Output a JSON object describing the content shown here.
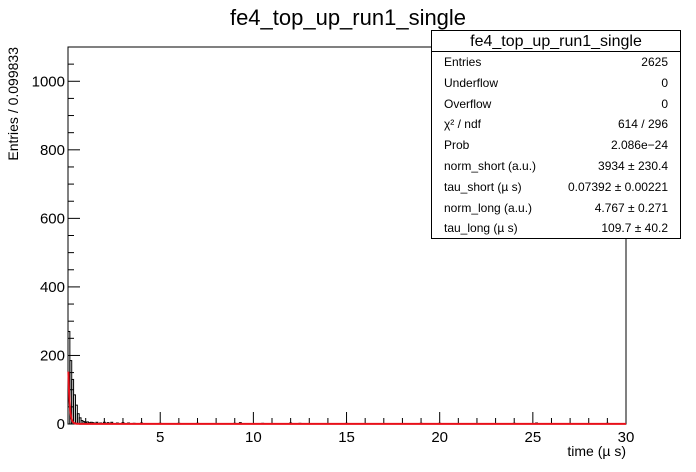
{
  "chart_data": {
    "type": "histogram",
    "title": "fe4_top_up_run1_single",
    "xlabel": "time (µ s)",
    "ylabel": "Entries / 0.099833",
    "xlim": [
      0.05,
      30
    ],
    "ylim": [
      0,
      1100
    ],
    "x_ticks": [
      5,
      10,
      15,
      20,
      25,
      30
    ],
    "y_ticks": [
      0,
      200,
      400,
      600,
      800,
      1000
    ],
    "bin_width": 0.099833,
    "histogram": {
      "color": "#000000",
      "bins": [
        {
          "x": 0.1,
          "y": 270
        },
        {
          "x": 0.2,
          "y": 185
        },
        {
          "x": 0.3,
          "y": 130
        },
        {
          "x": 0.4,
          "y": 85
        },
        {
          "x": 0.5,
          "y": 55
        },
        {
          "x": 0.6,
          "y": 30
        },
        {
          "x": 0.7,
          "y": 18
        },
        {
          "x": 0.8,
          "y": 10
        },
        {
          "x": 0.9,
          "y": 7
        },
        {
          "x": 1.0,
          "y": 5
        },
        {
          "x": 1.1,
          "y": 6
        },
        {
          "x": 1.2,
          "y": 4
        },
        {
          "x": 1.3,
          "y": 5
        },
        {
          "x": 1.4,
          "y": 4
        },
        {
          "x": 1.6,
          "y": 5
        },
        {
          "x": 1.8,
          "y": 3
        },
        {
          "x": 2.0,
          "y": 5
        },
        {
          "x": 2.2,
          "y": 4
        },
        {
          "x": 2.4,
          "y": 5
        },
        {
          "x": 2.7,
          "y": 3
        },
        {
          "x": 3.0,
          "y": 4
        },
        {
          "x": 3.3,
          "y": 3
        },
        {
          "x": 3.6,
          "y": 2
        },
        {
          "x": 4.0,
          "y": 3
        },
        {
          "x": 5.0,
          "y": 2
        },
        {
          "x": 6.0,
          "y": 2
        },
        {
          "x": 7.0,
          "y": 2
        },
        {
          "x": 8.0,
          "y": 1
        },
        {
          "x": 9.0,
          "y": 2
        },
        {
          "x": 9.3,
          "y": 4
        },
        {
          "x": 10.5,
          "y": 2
        },
        {
          "x": 12.0,
          "y": 3
        },
        {
          "x": 12.5,
          "y": 2
        },
        {
          "x": 13.5,
          "y": 1
        },
        {
          "x": 15.0,
          "y": 2
        },
        {
          "x": 17.0,
          "y": 1
        },
        {
          "x": 19.0,
          "y": 2
        },
        {
          "x": 20.0,
          "y": 2
        },
        {
          "x": 22.0,
          "y": 1
        },
        {
          "x": 24.0,
          "y": 2
        },
        {
          "x": 25.2,
          "y": 3
        },
        {
          "x": 27.0,
          "y": 1
        },
        {
          "x": 29.0,
          "y": 2
        }
      ]
    },
    "fit": {
      "color": "#e8101a",
      "model": "norm_short*exp(-t/tau_short) + norm_long*exp(-t/tau_long)",
      "norm_short": 3934,
      "tau_short": 0.07392,
      "norm_long": 4.767,
      "tau_long": 109.7
    },
    "legend_position": "top-right"
  },
  "stats": {
    "title": "fe4_top_up_run1_single",
    "rows": [
      {
        "label": "Entries",
        "value": "2625"
      },
      {
        "label": "Underflow",
        "value": "0"
      },
      {
        "label": "Overflow",
        "value": "0"
      },
      {
        "label": "χ² / ndf",
        "value": "614 / 296"
      },
      {
        "label": "Prob",
        "value": "2.086e−24"
      },
      {
        "label": "norm_short (a.u.)",
        "value": "3934 ± 230.4"
      },
      {
        "label": "tau_short (µ s)",
        "value": "0.07392 ± 0.00221"
      },
      {
        "label": "norm_long (a.u.)",
        "value": "4.767 ± 0.271"
      },
      {
        "label": "tau_long (µ s)",
        "value": "109.7 ± 40.2"
      }
    ]
  }
}
